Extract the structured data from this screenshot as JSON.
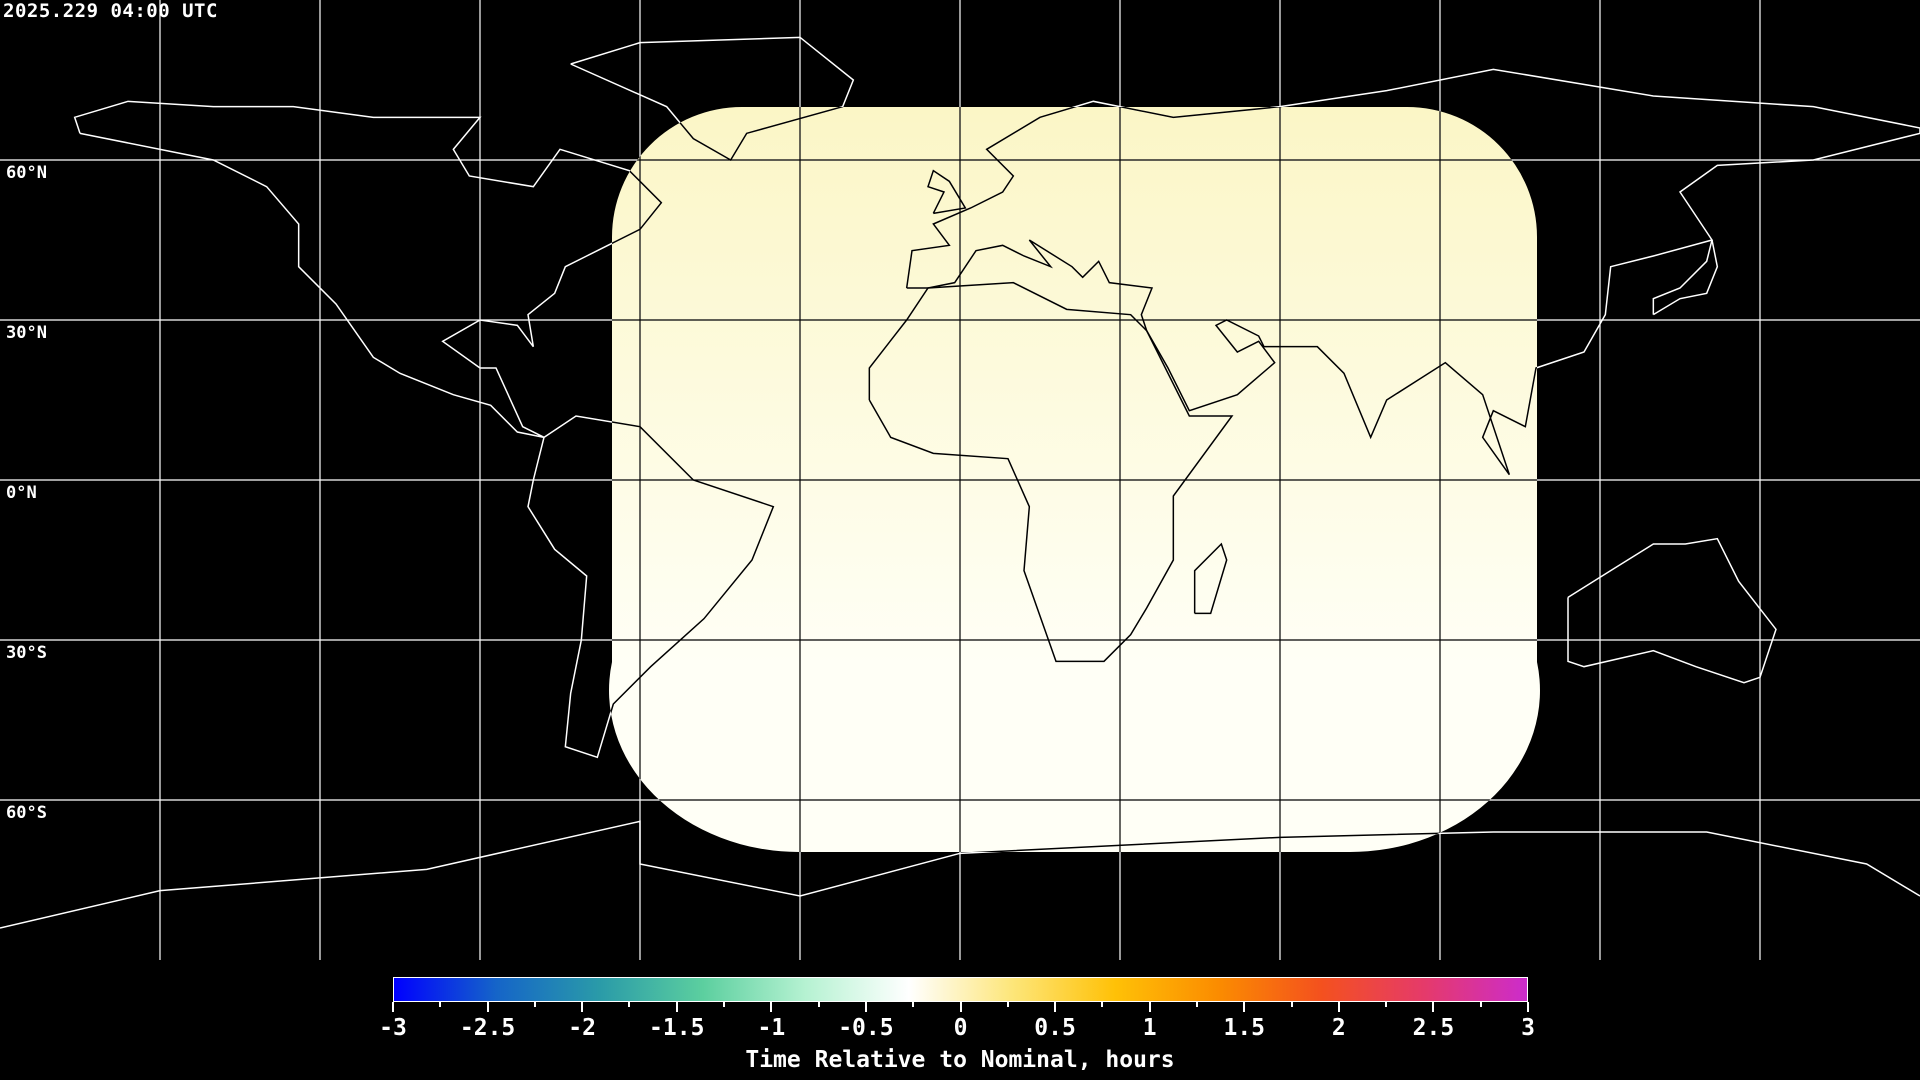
{
  "title": "2025.229 04:00 UTC",
  "latitude_labels": [
    "60°N",
    "30°N",
    "0°N",
    "30°S",
    "60°S"
  ],
  "colorbar": {
    "min": -3,
    "max": 3,
    "tick_labels": [
      "-3",
      "-2.5",
      "-2",
      "-1.5",
      "-1",
      "-0.5",
      "0",
      "0.5",
      "1",
      "1.5",
      "2",
      "2.5",
      "3"
    ],
    "label": "Time Relative to Nominal, hours",
    "colors": [
      "#0000ff",
      "#1565c8",
      "#2a9ba8",
      "#5ccf9f",
      "#b6f2d2",
      "#ffffff",
      "#fde67a",
      "#ffc107",
      "#fb8c00",
      "#f4511e",
      "#e53a6a",
      "#cc2ccc"
    ]
  },
  "coverage": {
    "fill_top": "#fbf6c6",
    "fill_bottom": "#fffff6",
    "approx_value_hours": 0.1
  },
  "colors": {
    "background": "#000000",
    "coastline": "#ffffff",
    "grid": "#ffffff"
  }
}
